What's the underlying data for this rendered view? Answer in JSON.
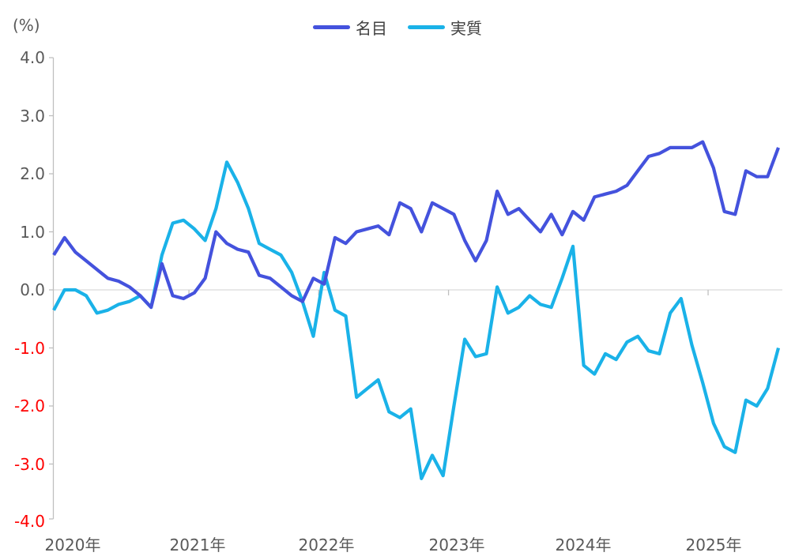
{
  "unit_label": "(%)",
  "legend": [
    {
      "label": "名目",
      "color": "#4452DD"
    },
    {
      "label": "実質",
      "color": "#1AB2E8"
    }
  ],
  "axis": {
    "y_tick_labels": [
      "4.0",
      "3.0",
      "2.0",
      "1.0",
      "0.0",
      "-1.0",
      "-2.0",
      "-3.0",
      "-4.0"
    ],
    "y_tick_values": [
      4,
      3,
      2,
      1,
      0,
      -1,
      -2,
      -3,
      -4
    ],
    "y_label_color_positive": "#595959",
    "y_label_color_negative": "#FF0000",
    "x_labels": [
      "2020年",
      "2021年",
      "2022年",
      "2023年",
      "2024年",
      "2025年"
    ],
    "axis_line_color": "#BFBFBF",
    "zero_gridline_color": "#D9D9D9"
  },
  "chart_data": {
    "type": "line",
    "title": "",
    "ylabel": "(%)",
    "ylim": [
      -4.0,
      4.0
    ],
    "grid": "zero-line-only",
    "legend_position": "top-center",
    "x_start": "2020-01",
    "x_end": "2025-08",
    "x_frequency": "monthly",
    "categories_years": [
      "2020年",
      "2021年",
      "2022年",
      "2023年",
      "2024年",
      "2025年"
    ],
    "series": [
      {
        "name": "名目",
        "color": "#4452DD",
        "values": [
          0.6,
          0.9,
          0.65,
          0.5,
          0.35,
          0.2,
          0.15,
          0.05,
          -0.1,
          -0.3,
          0.45,
          -0.1,
          -0.15,
          -0.05,
          0.2,
          1.0,
          0.8,
          0.7,
          0.65,
          0.25,
          0.2,
          0.05,
          -0.1,
          -0.2,
          0.2,
          0.1,
          0.9,
          0.8,
          1.0,
          1.05,
          1.1,
          0.95,
          1.5,
          1.4,
          1.0,
          1.5,
          1.4,
          1.3,
          0.85,
          0.5,
          0.85,
          1.7,
          1.3,
          1.4,
          1.2,
          1.0,
          1.3,
          0.95,
          1.35,
          1.2,
          1.6,
          1.65,
          1.7,
          1.8,
          2.05,
          2.3,
          2.35,
          2.45,
          2.45,
          2.45,
          2.55,
          2.1,
          1.35,
          1.3,
          2.05,
          1.95,
          1.95,
          2.45
        ]
      },
      {
        "name": "実質",
        "color": "#1AB2E8",
        "values": [
          -0.35,
          0.0,
          0.0,
          -0.1,
          -0.4,
          -0.35,
          -0.25,
          -0.2,
          -0.1,
          -0.3,
          0.6,
          1.15,
          1.2,
          1.05,
          0.85,
          1.4,
          2.2,
          1.85,
          1.4,
          0.8,
          0.7,
          0.6,
          0.3,
          -0.2,
          -0.8,
          0.3,
          -0.35,
          -0.45,
          -1.85,
          -1.7,
          -1.55,
          -2.1,
          -2.2,
          -2.05,
          -3.25,
          -2.85,
          -3.2,
          -2.0,
          -0.85,
          -1.15,
          -1.1,
          0.05,
          -0.4,
          -0.3,
          -0.1,
          -0.25,
          -0.3,
          0.2,
          0.75,
          -1.3,
          -1.45,
          -1.1,
          -1.2,
          -0.9,
          -0.8,
          -1.05,
          -1.1,
          -0.4,
          -0.15,
          -0.95,
          -1.6,
          -2.3,
          -2.7,
          -2.8,
          -1.9,
          -2.0,
          -1.7,
          -1.0
        ]
      }
    ]
  }
}
